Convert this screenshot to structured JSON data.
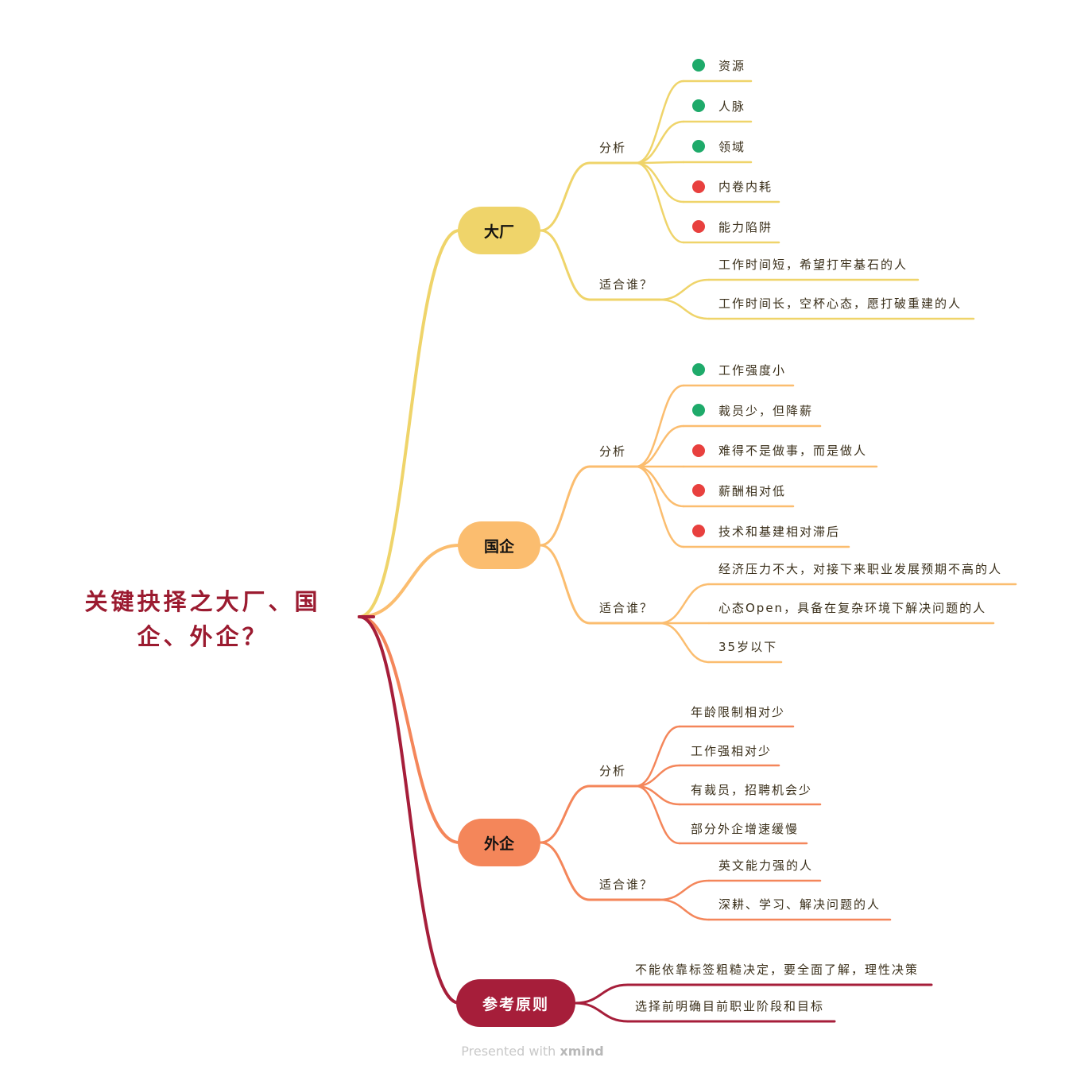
{
  "root": {
    "line1": "关键抉择之大厂、国",
    "line2": "企、外企？"
  },
  "colors": {
    "dachang": "#efd46a",
    "guoqi": "#fbbd6f",
    "waiqi": "#f4865a",
    "principle": "#a61e3a",
    "pro": "#1eaa6a",
    "con": "#e8403e"
  },
  "branches": {
    "dachang": {
      "title": "大厂",
      "analysis_label": "分析",
      "fit_label": "适合谁？",
      "analysis": [
        {
          "text": "资源",
          "mark": "pro"
        },
        {
          "text": "人脉",
          "mark": "pro"
        },
        {
          "text": "领域",
          "mark": "pro"
        },
        {
          "text": "内卷内耗",
          "mark": "con"
        },
        {
          "text": "能力陷阱",
          "mark": "con"
        }
      ],
      "fit": [
        "工作时间短，希望打牢基石的人",
        "工作时间长，空杯心态，愿打破重建的人"
      ]
    },
    "guoqi": {
      "title": "国企",
      "analysis_label": "分析",
      "fit_label": "适合谁？",
      "analysis": [
        {
          "text": "工作强度小",
          "mark": "pro"
        },
        {
          "text": "裁员少，但降薪",
          "mark": "pro"
        },
        {
          "text": "难得不是做事，而是做人",
          "mark": "con"
        },
        {
          "text": "薪酬相对低",
          "mark": "con"
        },
        {
          "text": "技术和基建相对滞后",
          "mark": "con"
        }
      ],
      "fit": [
        "经济压力不大，对接下来职业发展预期不高的人",
        "心态Open，具备在复杂环境下解决问题的人",
        "35岁以下"
      ]
    },
    "waiqi": {
      "title": "外企",
      "analysis_label": "分析",
      "fit_label": "适合谁？",
      "analysis": [
        "年龄限制相对少",
        "工作强相对少",
        "有裁员，招聘机会少",
        "部分外企增速缓慢"
      ],
      "fit": [
        "英文能力强的人",
        "深耕、学习、解决问题的人"
      ]
    },
    "principle": {
      "title": "参考原则",
      "items": [
        "不能依靠标签粗糙决定，要全面了解，理性决策",
        "选择前明确目前职业阶段和目标"
      ]
    }
  },
  "footer": {
    "prefix": "Presented with ",
    "brand": "xmind"
  }
}
